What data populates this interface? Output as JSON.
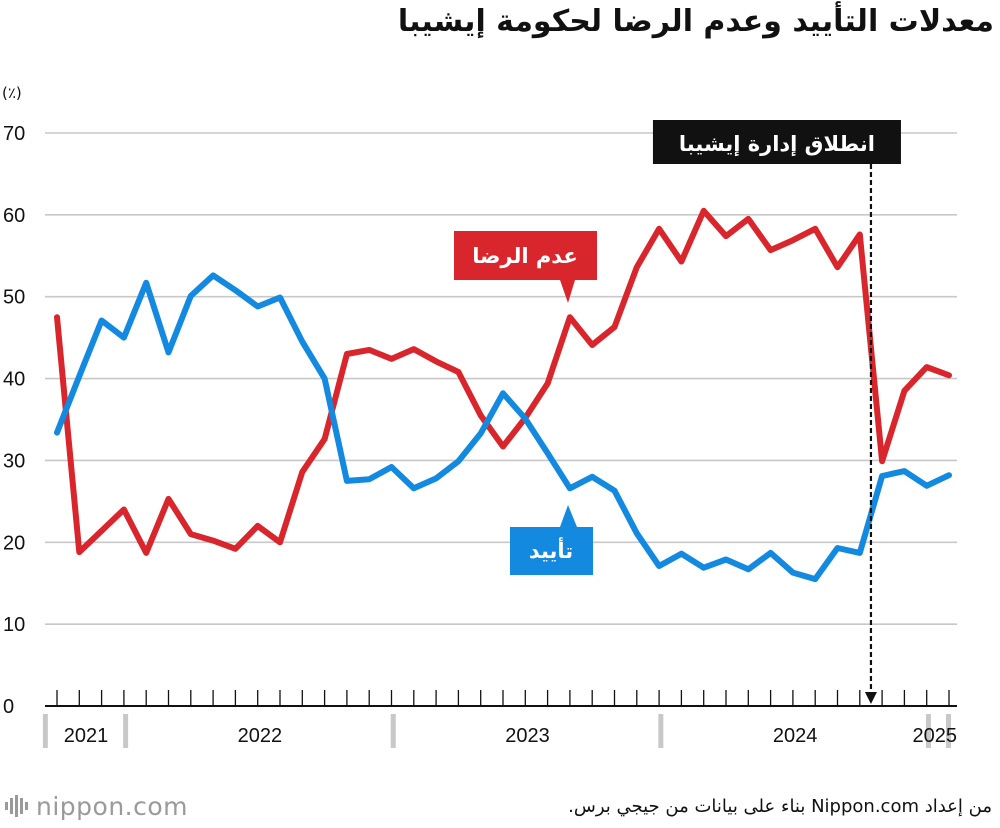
{
  "title": "معدلات التأييد وعدم الرضا لحكومة إيشيبا",
  "chart_data": {
    "type": "line",
    "y_unit_label": "(٪)",
    "ylim": [
      0,
      70
    ],
    "y_ticks": [
      0,
      10,
      20,
      30,
      40,
      50,
      60,
      70
    ],
    "years": [
      {
        "label": "2021",
        "start": 0,
        "end": 3.6
      },
      {
        "label": "2022",
        "start": 3.6,
        "end": 15.6
      },
      {
        "label": "2023",
        "start": 15.6,
        "end": 27.6
      },
      {
        "label": "2024",
        "start": 27.6,
        "end": 39.6
      },
      {
        "label": "2025",
        "start": 39.6,
        "end": 40.5
      }
    ],
    "series": [
      {
        "name": "disapproval",
        "label": "عدم الرضا",
        "color": "#d9262c",
        "values": [
          47.5,
          18.8,
          21.4,
          24.0,
          18.7,
          25.3,
          21.0,
          20.2,
          19.2,
          22.0,
          20.0,
          28.6,
          32.6,
          43.0,
          43.5,
          42.4,
          43.6,
          42.1,
          40.8,
          35.5,
          31.7,
          35.2,
          39.4,
          47.5,
          44.1,
          46.3,
          53.6,
          58.3,
          54.3,
          60.5,
          57.4,
          59.5,
          55.7,
          56.9,
          58.3,
          53.6,
          57.6,
          29.9,
          38.5,
          41.4,
          40.4
        ]
      },
      {
        "name": "approval",
        "label": "تأييد",
        "color": "#1489e0",
        "values": [
          33.4,
          40.3,
          47.1,
          45.0,
          51.7,
          43.2,
          50.1,
          52.6,
          50.8,
          48.8,
          49.9,
          44.5,
          40.0,
          27.5,
          27.7,
          29.2,
          26.6,
          27.8,
          29.9,
          33.3,
          38.2,
          35.1,
          30.9,
          26.6,
          28.0,
          26.3,
          21.1,
          17.1,
          18.6,
          16.9,
          17.9,
          16.7,
          18.7,
          16.3,
          15.5,
          19.3,
          18.7,
          28.1,
          28.7,
          26.9,
          28.2
        ]
      }
    ],
    "annotation": {
      "label": "انطلاق إدارة إيشيبا",
      "x_index": 36.5
    }
  },
  "footer": {
    "logo": "nippon.com",
    "source": "من إعداد Nippon.com بناء على بيانات من جيجي برس."
  }
}
